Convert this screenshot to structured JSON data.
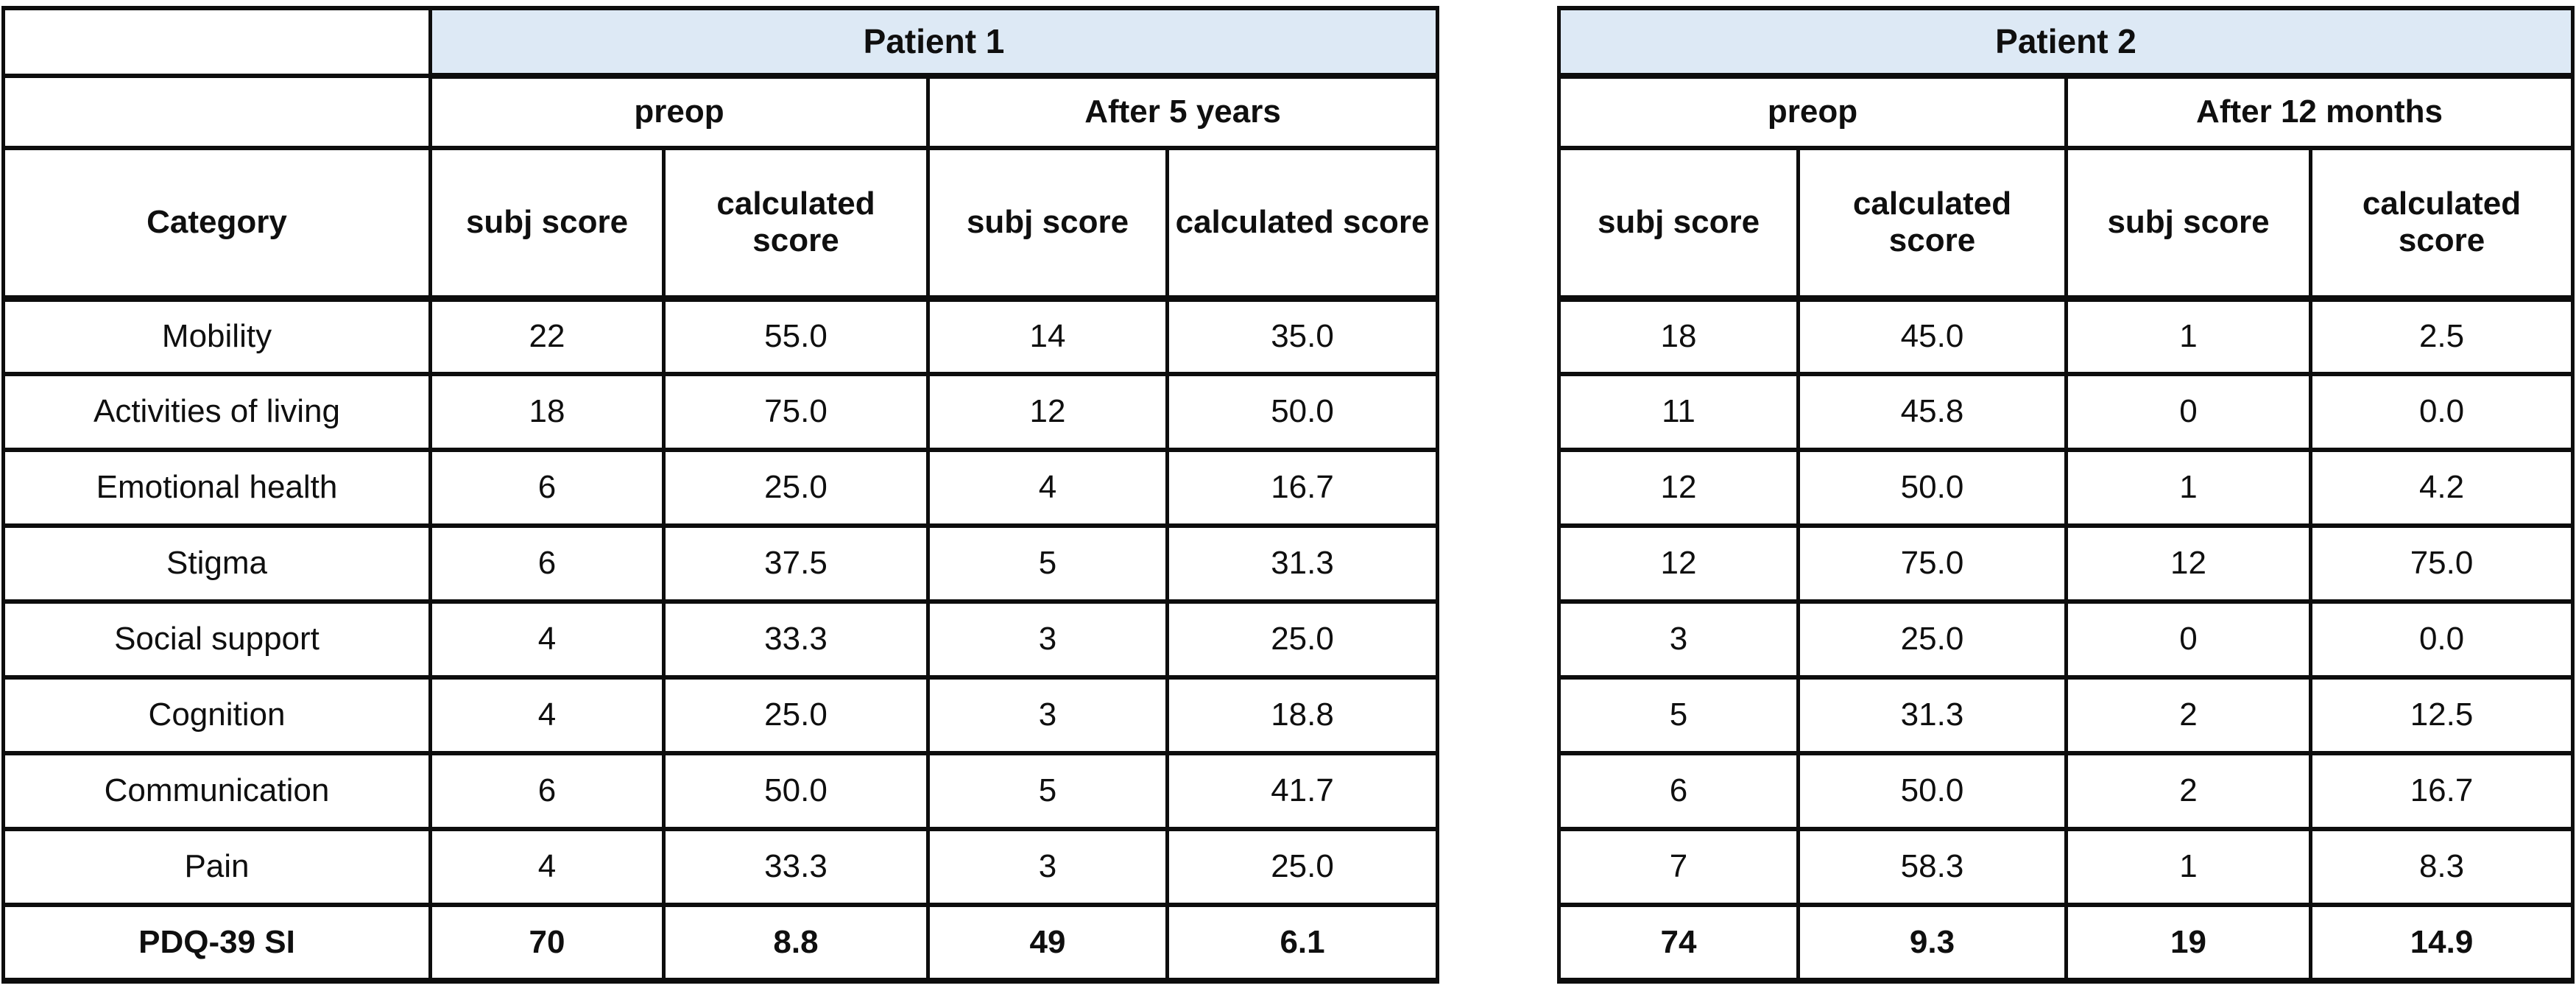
{
  "colors": {
    "title_band_fill": "#dde9f5",
    "border": "#0d0d0d",
    "text": "#0f0f0f",
    "background": "#ffffff"
  },
  "tables": [
    {
      "title": "Patient 1",
      "corner_header": "Category",
      "period_headers": [
        "preop",
        "After 5 years"
      ],
      "column_headers": [
        "subj score",
        "calculated score",
        "subj score",
        "calculated score"
      ],
      "rows": [
        {
          "category": "Mobility",
          "values": [
            "22",
            "55.0",
            "14",
            "35.0"
          ],
          "bold": false
        },
        {
          "category": "Activities of living",
          "values": [
            "18",
            "75.0",
            "12",
            "50.0"
          ],
          "bold": false
        },
        {
          "category": "Emotional health",
          "values": [
            "6",
            "25.0",
            "4",
            "16.7"
          ],
          "bold": false
        },
        {
          "category": "Stigma",
          "values": [
            "6",
            "37.5",
            "5",
            "31.3"
          ],
          "bold": false
        },
        {
          "category": "Social support",
          "values": [
            "4",
            "33.3",
            "3",
            "25.0"
          ],
          "bold": false
        },
        {
          "category": "Cognition",
          "values": [
            "4",
            "25.0",
            "3",
            "18.8"
          ],
          "bold": false
        },
        {
          "category": "Communication",
          "values": [
            "6",
            "50.0",
            "5",
            "41.7"
          ],
          "bold": false
        },
        {
          "category": "Pain",
          "values": [
            "4",
            "33.3",
            "3",
            "25.0"
          ],
          "bold": false
        },
        {
          "category": "PDQ-39 SI",
          "values": [
            "70",
            "8.8",
            "49",
            "6.1"
          ],
          "bold": true
        }
      ]
    },
    {
      "title": "Patient 2",
      "period_headers": [
        "preop",
        "After 12 months"
      ],
      "column_headers": [
        "subj score",
        "calculated score",
        "subj score",
        "calculated score"
      ],
      "rows": [
        {
          "values": [
            "18",
            "45.0",
            "1",
            "2.5"
          ],
          "bold": false
        },
        {
          "values": [
            "11",
            "45.8",
            "0",
            "0.0"
          ],
          "bold": false
        },
        {
          "values": [
            "12",
            "50.0",
            "1",
            "4.2"
          ],
          "bold": false
        },
        {
          "values": [
            "12",
            "75.0",
            "12",
            "75.0"
          ],
          "bold": false
        },
        {
          "values": [
            "3",
            "25.0",
            "0",
            "0.0"
          ],
          "bold": false
        },
        {
          "values": [
            "5",
            "31.3",
            "2",
            "12.5"
          ],
          "bold": false
        },
        {
          "values": [
            "6",
            "50.0",
            "2",
            "16.7"
          ],
          "bold": false
        },
        {
          "values": [
            "7",
            "58.3",
            "1",
            "8.3"
          ],
          "bold": false
        },
        {
          "values": [
            "74",
            "9.3",
            "19",
            "14.9"
          ],
          "bold": true
        }
      ]
    }
  ],
  "chart_data": {
    "type": "table",
    "tables": [
      {
        "title": "Patient 1",
        "columns": [
          "Category",
          "preop subj score",
          "preop calculated score",
          "After 5 years subj score",
          "After 5 years calculated score"
        ],
        "rows": [
          [
            "Mobility",
            22,
            55.0,
            14,
            35.0
          ],
          [
            "Activities of living",
            18,
            75.0,
            12,
            50.0
          ],
          [
            "Emotional health",
            6,
            25.0,
            4,
            16.7
          ],
          [
            "Stigma",
            6,
            37.5,
            5,
            31.3
          ],
          [
            "Social support",
            4,
            33.3,
            3,
            25.0
          ],
          [
            "Cognition",
            4,
            25.0,
            3,
            18.8
          ],
          [
            "Communication",
            6,
            50.0,
            5,
            41.7
          ],
          [
            "Pain",
            4,
            33.3,
            3,
            25.0
          ],
          [
            "PDQ-39 SI",
            70,
            8.8,
            49,
            6.1
          ]
        ]
      },
      {
        "title": "Patient 2",
        "columns": [
          "preop subj score",
          "preop calculated score",
          "After 12 months subj score",
          "After 12 months calculated score"
        ],
        "rows": [
          [
            18,
            45.0,
            1,
            2.5
          ],
          [
            11,
            45.8,
            0,
            0.0
          ],
          [
            12,
            50.0,
            1,
            4.2
          ],
          [
            12,
            75.0,
            12,
            75.0
          ],
          [
            3,
            25.0,
            0,
            0.0
          ],
          [
            5,
            31.3,
            2,
            12.5
          ],
          [
            6,
            50.0,
            2,
            16.7
          ],
          [
            7,
            58.3,
            1,
            8.3
          ],
          [
            74,
            9.3,
            19,
            14.9
          ]
        ]
      }
    ]
  }
}
